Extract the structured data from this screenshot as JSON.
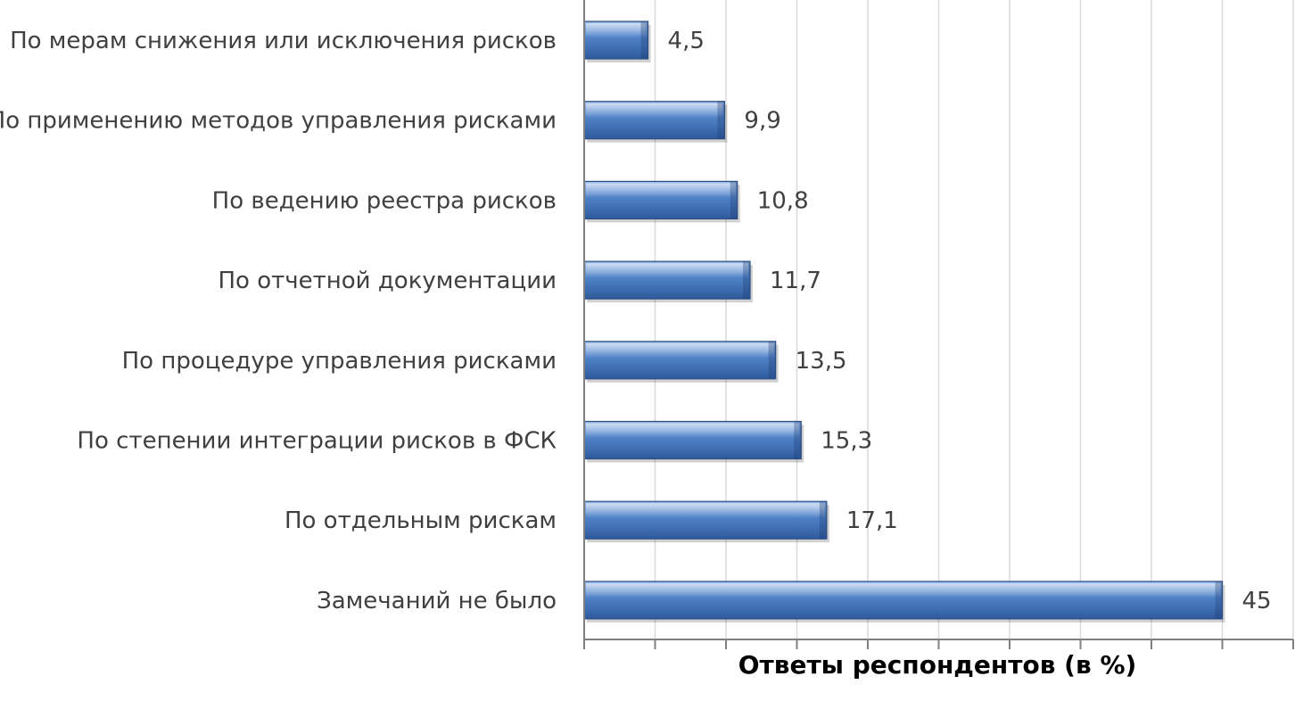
{
  "chart_data": {
    "type": "bar",
    "orientation": "horizontal",
    "categories": [
      "По мерам снижения или исключения рисков",
      "По применению методов управления рисками",
      "По ведению реестра рисков",
      "По отчетной документации",
      "По процедуре управления рисками",
      "По степении интеграции рисков в ФСК",
      "По отдельным рискам",
      "Замечаний не было"
    ],
    "values": [
      4.5,
      9.9,
      10.8,
      11.7,
      13.5,
      15.3,
      17.1,
      45
    ],
    "value_labels": [
      "4,5",
      "9,9",
      "10,8",
      "11,7",
      "13,5",
      "15,3",
      "17,1",
      "45"
    ],
    "xlabel": "Ответы респондентов (в %)",
    "ylabel": "",
    "title": "",
    "xlim": [
      0,
      50
    ],
    "x_major_step": 5,
    "grid": true,
    "legend": "none",
    "colors": {
      "bar_top": "#9bbbe8",
      "bar_mid": "#4f81c7",
      "bar_bottom": "#2f5a9c",
      "bar_edge": "#2c4f86",
      "grid": "#d9d9d9",
      "axis": "#808080",
      "label_text": "#404040",
      "axis_title": "#000000"
    }
  }
}
